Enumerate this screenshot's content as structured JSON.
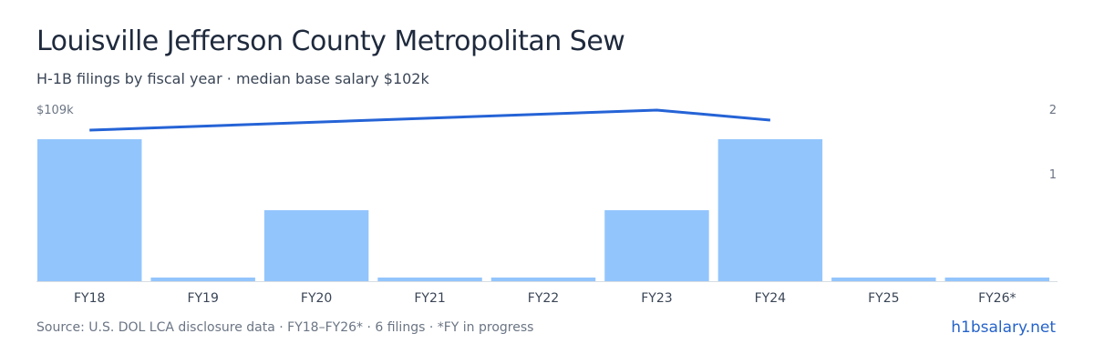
{
  "header": {
    "title": "Louisville Jefferson County Metropolitan Sew",
    "subtitle": "H-1B filings by fiscal year · median base salary $102k"
  },
  "footer": {
    "source": "Source: U.S. DOL LCA disclosure data · FY18–FY26* · 6 filings · *FY in progress",
    "brand": "h1bsalary.net"
  },
  "colors": {
    "bar": "#93c5fd",
    "line": "#2563d6",
    "axis": "#d8dde3"
  },
  "chart_data": {
    "type": "bar",
    "categories": [
      "FY18",
      "FY19",
      "FY20",
      "FY21",
      "FY22",
      "FY23",
      "FY24",
      "FY25",
      "FY26*"
    ],
    "series": [
      {
        "values": [
          2,
          0,
          1,
          0,
          0,
          1,
          2,
          0,
          0
        ]
      }
    ],
    "line_series": {
      "axis": "left",
      "label_top": "$109k",
      "points": [
        {
          "category": "FY18",
          "value": 95
        },
        {
          "category": "FY23",
          "value": 109
        },
        {
          "category": "FY24",
          "value": 102
        }
      ]
    },
    "y_right": {
      "ticks": [
        "2",
        "1"
      ],
      "max": 2
    },
    "y_left": {
      "max": 109,
      "label": "$109k"
    },
    "grid": false
  }
}
